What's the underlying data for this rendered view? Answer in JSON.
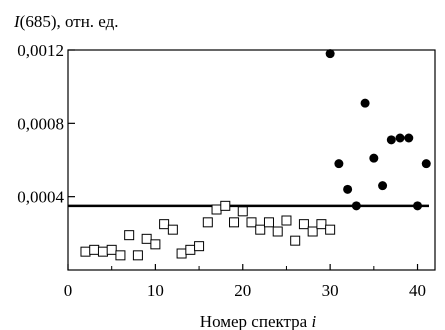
{
  "chart_data": {
    "type": "scatter",
    "ylabel_var": "I",
    "ylabel_rest": "(685), отн. ед.",
    "xlabel_text": "Номер спектра ",
    "xlabel_var": "i",
    "xlim": [
      0,
      42
    ],
    "ylim": [
      0,
      0.0012
    ],
    "x_ticks": [
      0,
      10,
      20,
      30,
      40
    ],
    "x_tick_labels": [
      "0",
      "10",
      "20",
      "30",
      "40"
    ],
    "y_ticks": [
      0.0004,
      0.0008,
      0.0012
    ],
    "y_tick_labels": [
      "0,0004",
      "0,0008",
      "0,0012"
    ],
    "grid": false,
    "threshold": 0.00035,
    "series": [
      {
        "marker": "open-square",
        "points": [
          [
            2,
            0.0001
          ],
          [
            3,
            0.00011
          ],
          [
            4,
            0.0001
          ],
          [
            5,
            0.00011
          ],
          [
            6,
            8e-05
          ],
          [
            7,
            0.00019
          ],
          [
            8,
            8e-05
          ],
          [
            9,
            0.00017
          ],
          [
            10,
            0.00014
          ],
          [
            11,
            0.00025
          ],
          [
            12,
            0.00022
          ],
          [
            13,
            9e-05
          ],
          [
            14,
            0.00011
          ],
          [
            15,
            0.00013
          ],
          [
            16,
            0.00026
          ],
          [
            17,
            0.00033
          ],
          [
            18,
            0.00035
          ],
          [
            19,
            0.00026
          ],
          [
            20,
            0.00032
          ],
          [
            21,
            0.00026
          ],
          [
            22,
            0.00022
          ],
          [
            23,
            0.00026
          ],
          [
            24,
            0.00021
          ],
          [
            25,
            0.00027
          ],
          [
            26,
            0.00016
          ],
          [
            27,
            0.00025
          ],
          [
            28,
            0.00021
          ],
          [
            29,
            0.00025
          ],
          [
            30,
            0.00022
          ]
        ]
      },
      {
        "marker": "filled-circle",
        "points": [
          [
            30,
            0.00118
          ],
          [
            31,
            0.00058
          ],
          [
            32,
            0.00044
          ],
          [
            33,
            0.00035
          ],
          [
            34,
            0.00091
          ],
          [
            35,
            0.00061
          ],
          [
            36,
            0.00046
          ],
          [
            37,
            0.00071
          ],
          [
            38,
            0.00072
          ],
          [
            39,
            0.00072
          ],
          [
            40,
            0.00035
          ],
          [
            41,
            0.00058
          ]
        ]
      }
    ]
  }
}
